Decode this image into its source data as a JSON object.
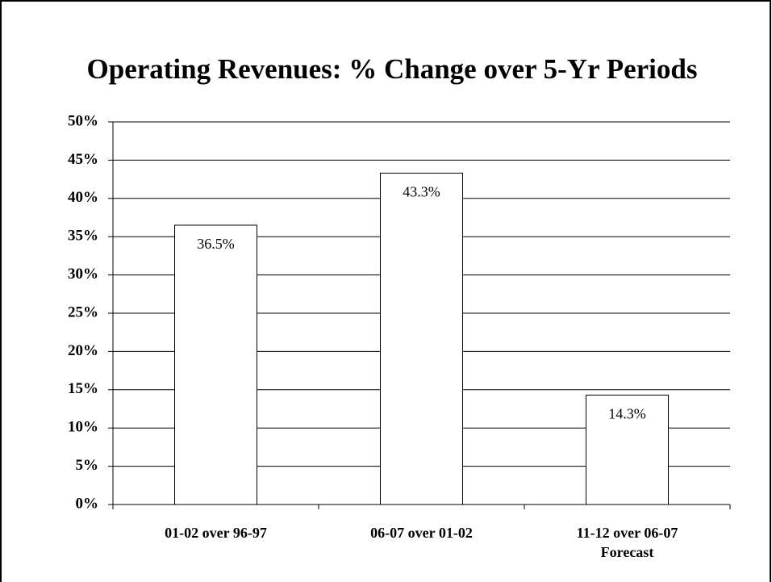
{
  "chart_data": {
    "type": "bar",
    "title": "Operating Revenues:  % Change over 5-Yr Periods",
    "categories": [
      "01-02 over 96-97",
      "06-07 over 01-02",
      "11-12 over 06-07\nForecast"
    ],
    "values": [
      36.5,
      43.3,
      14.3
    ],
    "value_labels": [
      "36.5%",
      "43.3%",
      "14.3%"
    ],
    "color": "#ffffff",
    "ylim": [
      0,
      50
    ],
    "yticks": [
      {
        "value": 0,
        "label": "0%"
      },
      {
        "value": 5,
        "label": "5%"
      },
      {
        "value": 10,
        "label": "10%"
      },
      {
        "value": 15,
        "label": "15%"
      },
      {
        "value": 20,
        "label": "20%"
      },
      {
        "value": 25,
        "label": "25%"
      },
      {
        "value": 30,
        "label": "30%"
      },
      {
        "value": 35,
        "label": "35%"
      },
      {
        "value": 40,
        "label": "40%"
      },
      {
        "value": 45,
        "label": "45%"
      },
      {
        "value": 50,
        "label": "50%"
      }
    ],
    "grid": true
  }
}
